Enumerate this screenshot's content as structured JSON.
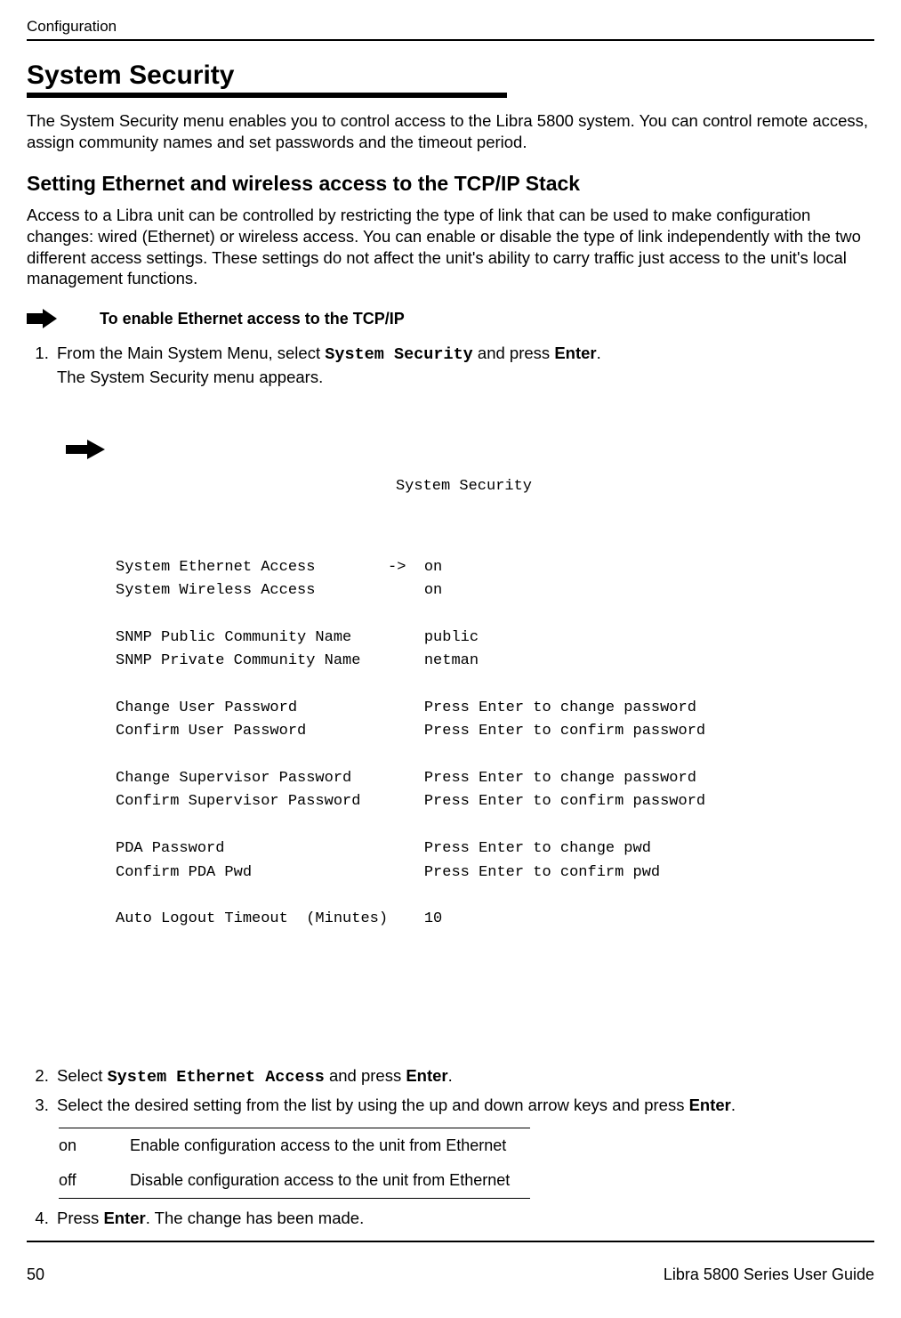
{
  "header": {
    "running": "Configuration"
  },
  "section": {
    "title": "System Security",
    "intro": "The System Security menu enables you to control access to the Libra 5800 system. You can control remote access, assign community names and set passwords and the timeout period."
  },
  "subsection": {
    "title": "Setting Ethernet and wireless access to the TCP/IP Stack",
    "intro": "Access to a Libra unit can be controlled by restricting the type of link that can be used to make configuration changes: wired (Ethernet) or wireless access. You can enable or disable the type of link independently with the two different access settings. These settings do not affect the unit's ability to carry traffic just access to the unit's local management functions."
  },
  "procedure": {
    "title": "To enable Ethernet access to the TCP/IP"
  },
  "steps": {
    "s1_pre": "From the Main System Menu, select ",
    "s1_mono": "System Security",
    "s1_mid": " and press ",
    "s1_bold": "Enter",
    "s1_post": ".",
    "s1_line2": "The System Security menu appears.",
    "s2_pre": "Select ",
    "s2_mono": "System Ethernet Access",
    "s2_mid": " and press ",
    "s2_bold": "Enter",
    "s2_post": ".",
    "s3_pre": "Select the desired setting from the list by using the up and down arrow keys and press ",
    "s3_bold": "Enter",
    "s3_post": ".",
    "s4_pre": "Press ",
    "s4_bold": "Enter",
    "s4_post": ". The change has been made."
  },
  "terminal": {
    "title": "System Security",
    "rows": [
      {
        "label": "System Ethernet Access",
        "arrow": "->",
        "value": "on"
      },
      {
        "label": "System Wireless Access",
        "arrow": "",
        "value": "on"
      },
      {
        "label": "",
        "arrow": "",
        "value": ""
      },
      {
        "label": "SNMP Public Community Name",
        "arrow": "",
        "value": "public"
      },
      {
        "label": "SNMP Private Community Name",
        "arrow": "",
        "value": "netman"
      },
      {
        "label": "",
        "arrow": "",
        "value": ""
      },
      {
        "label": "Change User Password",
        "arrow": "",
        "value": "Press Enter to change password"
      },
      {
        "label": "Confirm User Password",
        "arrow": "",
        "value": "Press Enter to confirm password"
      },
      {
        "label": "",
        "arrow": "",
        "value": ""
      },
      {
        "label": "Change Supervisor Password",
        "arrow": "",
        "value": "Press Enter to change password"
      },
      {
        "label": "Confirm Supervisor Password",
        "arrow": "",
        "value": "Press Enter to confirm password"
      },
      {
        "label": "",
        "arrow": "",
        "value": ""
      },
      {
        "label": "PDA Password",
        "arrow": "",
        "value": "Press Enter to change pwd"
      },
      {
        "label": "Confirm PDA Pwd",
        "arrow": "",
        "value": "Press Enter to confirm pwd"
      },
      {
        "label": "",
        "arrow": "",
        "value": ""
      },
      {
        "label": "Auto Logout Timeout  (Minutes)",
        "arrow": "",
        "value": "10"
      }
    ],
    "label_col_width": 30,
    "arrow_col_width": 3,
    "font_color": "#000000",
    "background_color": "#ffffff"
  },
  "options": {
    "rows": [
      {
        "key": "on",
        "desc": "Enable configuration access to the unit from Ethernet"
      },
      {
        "key": "off",
        "desc": "Disable configuration access to the unit from Ethernet"
      }
    ]
  },
  "footer": {
    "page": "50",
    "title": "Libra 5800 Series User Guide"
  },
  "colors": {
    "text": "#000000",
    "rule": "#000000",
    "background": "#ffffff"
  }
}
